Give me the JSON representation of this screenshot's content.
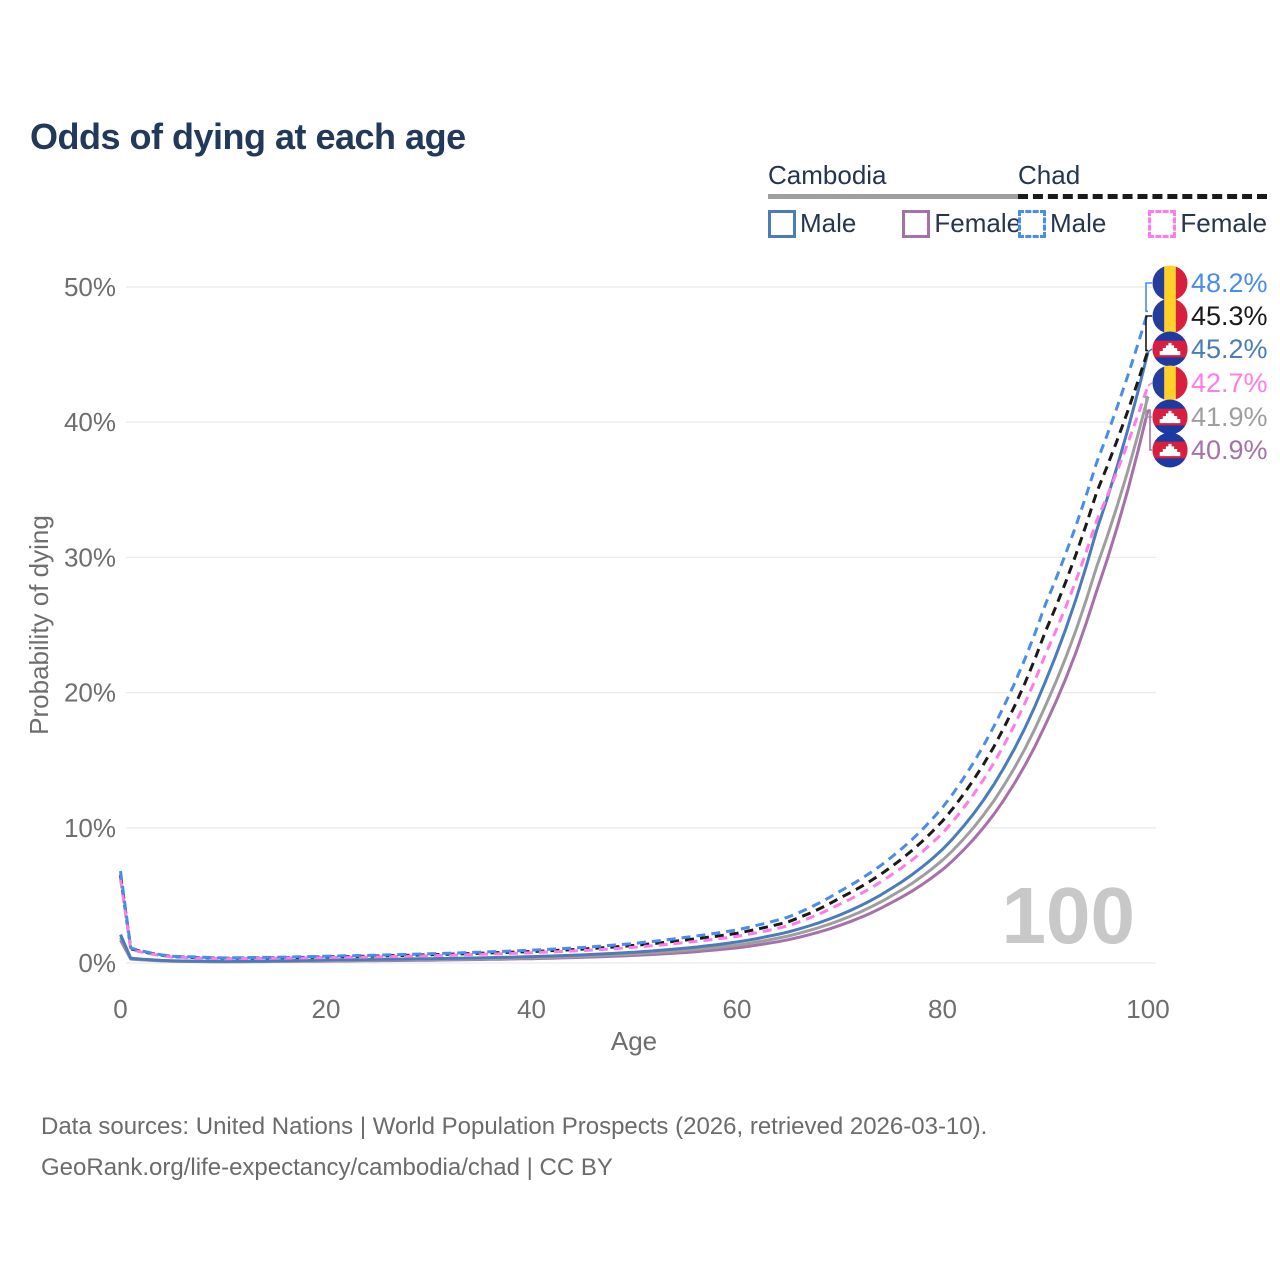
{
  "title": "Odds of dying at each age",
  "legend": {
    "cambodia": {
      "label": "Cambodia",
      "male": "Male",
      "female": "Female"
    },
    "chad": {
      "label": "Chad",
      "male": "Male",
      "female": "Female"
    }
  },
  "watermark": "100",
  "footer": {
    "line1": "Data sources: United Nations | World Population Prospects (2026, retrieved 2026-03-10).",
    "line2": "GeoRank.org/life-expectancy/cambodia/chad | CC BY"
  },
  "colors": {
    "chad_male": "#4a8ceb",
    "chad_both": "#1a1a1a",
    "chad_female": "#ff7ce8",
    "cambodia_male": "#4a7cb8",
    "cambodia_both": "#9e9e9e",
    "cambodia_female": "#a671a9",
    "axis_text": "#6e6e6e",
    "gridline": "#ebebeb",
    "watermark": "#c8c8c8",
    "flag_chad": [
      "#243d9b",
      "#fdd02a",
      "#d81f3d"
    ],
    "flag_cambodia_blue": "#1b3aa3",
    "flag_cambodia_red": "#d81f3d"
  },
  "chart_data": {
    "type": "line",
    "title": "Odds of dying at each age",
    "xlabel": "Age",
    "ylabel": "Probability of dying",
    "xlim": [
      0,
      100
    ],
    "ylim": [
      0,
      50
    ],
    "x_ticks": [
      0,
      20,
      40,
      60,
      80,
      100
    ],
    "y_ticks": [
      "0%",
      "10%",
      "20%",
      "30%",
      "40%",
      "50%"
    ],
    "grid": "horizontal",
    "legend_position": "top-right",
    "ages": [
      0,
      1,
      5,
      10,
      15,
      20,
      25,
      30,
      35,
      40,
      45,
      50,
      55,
      60,
      65,
      70,
      75,
      80,
      85,
      90,
      95,
      100
    ],
    "series": [
      {
        "id": "chad-male",
        "name": "Chad Male",
        "color": "#4a8ceb",
        "dash": true,
        "flag": "chad",
        "end_value": 48.2,
        "end_label": "48.2%",
        "values": [
          6.8,
          1.1,
          0.5,
          0.38,
          0.42,
          0.5,
          0.58,
          0.68,
          0.8,
          0.95,
          1.15,
          1.45,
          1.9,
          2.45,
          3.4,
          5.3,
          7.8,
          11.5,
          17.5,
          26.5,
          37.0,
          48.2
        ]
      },
      {
        "id": "chad-both",
        "name": "Chad",
        "color": "#1a1a1a",
        "dash": true,
        "flag": "chad",
        "end_value": 45.3,
        "end_label": "45.3%",
        "values": [
          6.5,
          1.05,
          0.47,
          0.35,
          0.38,
          0.45,
          0.52,
          0.61,
          0.72,
          0.85,
          1.03,
          1.3,
          1.7,
          2.2,
          3.05,
          4.8,
          7.1,
          10.5,
          16.0,
          24.5,
          34.8,
          45.3
        ]
      },
      {
        "id": "cambodia-male",
        "name": "Cambodia Male",
        "color": "#4a7cb8",
        "dash": false,
        "flag": "cambodia",
        "end_value": 45.2,
        "end_label": "45.2%",
        "values": [
          2.1,
          0.35,
          0.16,
          0.12,
          0.16,
          0.22,
          0.27,
          0.32,
          0.38,
          0.47,
          0.6,
          0.8,
          1.1,
          1.55,
          2.3,
          3.55,
          5.5,
          8.4,
          13.2,
          20.8,
          32.0,
          45.2
        ]
      },
      {
        "id": "chad-female",
        "name": "Chad Female",
        "color": "#ff7ce8",
        "dash": true,
        "flag": "chad",
        "end_value": 42.7,
        "end_label": "42.7%",
        "values": [
          6.2,
          1.0,
          0.44,
          0.32,
          0.35,
          0.4,
          0.46,
          0.54,
          0.64,
          0.76,
          0.92,
          1.16,
          1.52,
          1.97,
          2.75,
          4.35,
          6.5,
          9.6,
          14.8,
          22.8,
          32.7,
          42.7
        ]
      },
      {
        "id": "cambodia-both",
        "name": "Cambodia",
        "color": "#9e9e9e",
        "dash": false,
        "flag": "cambodia",
        "end_value": 41.9,
        "end_label": "41.9%",
        "values": [
          1.9,
          0.32,
          0.14,
          0.1,
          0.13,
          0.18,
          0.22,
          0.26,
          0.31,
          0.39,
          0.5,
          0.67,
          0.93,
          1.32,
          2.0,
          3.15,
          4.95,
          7.6,
          12.0,
          19.0,
          29.3,
          41.9
        ]
      },
      {
        "id": "cambodia-female",
        "name": "Cambodia Female",
        "color": "#a671a9",
        "dash": false,
        "flag": "cambodia",
        "end_value": 40.9,
        "end_label": "40.9%",
        "values": [
          1.7,
          0.29,
          0.13,
          0.09,
          0.11,
          0.14,
          0.17,
          0.21,
          0.26,
          0.32,
          0.42,
          0.56,
          0.78,
          1.12,
          1.72,
          2.78,
          4.45,
          6.9,
          11.0,
          17.6,
          27.5,
          40.9
        ]
      }
    ]
  }
}
